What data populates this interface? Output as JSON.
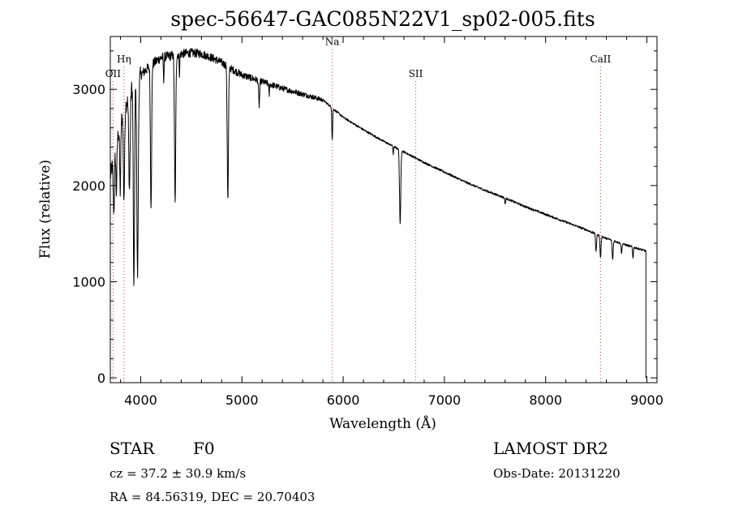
{
  "chart_data": {
    "type": "line",
    "title": "spec-56647-GAC085N22V1_sp02-005.fits",
    "xlabel": "Wavelength (Å)",
    "ylabel": "Flux (relative)",
    "xlim": [
      3700,
      9100
    ],
    "ylim": [
      -50,
      3550
    ],
    "xticks": [
      4000,
      5000,
      6000,
      7000,
      8000,
      9000
    ],
    "yticks": [
      0,
      1000,
      2000,
      3000
    ],
    "grid": false,
    "continuum": {
      "x": [
        3700,
        3800,
        3900,
        4000,
        4100,
        4200,
        4300,
        4400,
        4500,
        4600,
        4700,
        4800,
        4900,
        5000,
        5200,
        5400,
        5600,
        5800,
        5900,
        6000,
        6200,
        6400,
        6600,
        6800,
        7000,
        7200,
        7400,
        7600,
        7800,
        8000,
        8200,
        8400,
        8600,
        8800,
        8990
      ],
      "y": [
        2100,
        2650,
        3000,
        3150,
        3250,
        3330,
        3350,
        3370,
        3380,
        3370,
        3330,
        3280,
        3210,
        3150,
        3080,
        3010,
        2950,
        2890,
        2800,
        2710,
        2580,
        2460,
        2350,
        2240,
        2140,
        2040,
        1950,
        1870,
        1780,
        1700,
        1620,
        1540,
        1450,
        1380,
        1320
      ]
    },
    "absorption_features": [
      {
        "center": 3735,
        "width": 6,
        "depth": 560
      },
      {
        "center": 3760,
        "width": 5,
        "depth": 500
      },
      {
        "center": 3798,
        "width": 5,
        "depth": 700
      },
      {
        "center": 3835,
        "width": 6,
        "depth": 900
      },
      {
        "center": 3889,
        "width": 7,
        "depth": 1000
      },
      {
        "center": 3933,
        "width": 6,
        "depth": 2150
      },
      {
        "center": 3969,
        "width": 7,
        "depth": 2050
      },
      {
        "center": 4102,
        "width": 6,
        "depth": 1450
      },
      {
        "center": 4227,
        "width": 3,
        "depth": 250
      },
      {
        "center": 4340,
        "width": 6,
        "depth": 1550
      },
      {
        "center": 4383,
        "width": 3,
        "depth": 200
      },
      {
        "center": 4861,
        "width": 6,
        "depth": 1400
      },
      {
        "center": 5170,
        "width": 5,
        "depth": 260
      },
      {
        "center": 5269,
        "width": 3,
        "depth": 120
      },
      {
        "center": 5892,
        "width": 4,
        "depth": 330
      },
      {
        "center": 6495,
        "width": 3,
        "depth": 80
      },
      {
        "center": 6563,
        "width": 6,
        "depth": 780
      },
      {
        "center": 7600,
        "width": 4,
        "depth": 60
      },
      {
        "center": 8498,
        "width": 5,
        "depth": 180
      },
      {
        "center": 8542,
        "width": 5,
        "depth": 230
      },
      {
        "center": 8662,
        "width": 5,
        "depth": 200
      },
      {
        "center": 8750,
        "width": 4,
        "depth": 110
      },
      {
        "center": 8863,
        "width": 4,
        "depth": 110
      }
    ],
    "cutoff": {
      "x": 8990,
      "y": 0
    },
    "line_markers": [
      {
        "label": "OII",
        "x": 3727,
        "label_y": 3130
      },
      {
        "label": "Hη",
        "x": 3835,
        "label_y": 3280
      },
      {
        "label": "Na",
        "x": 5892,
        "label_y": 3460
      },
      {
        "label": "SII",
        "x": 6717,
        "label_y": 3130
      },
      {
        "label": "CaII",
        "x": 8542,
        "label_y": 3280
      }
    ]
  },
  "info": {
    "object_class": "STAR",
    "subclass": "F0",
    "survey": "LAMOST DR2",
    "redshift": "cz = 37.2 ± 30.9 km/s",
    "obs_date": "Obs-Date: 20131220",
    "coords": "RA =  84.56319, DEC =  20.70403"
  },
  "colors": {
    "spectrum": "#000000",
    "marker_line": "#cc3333",
    "axis": "#000000"
  }
}
